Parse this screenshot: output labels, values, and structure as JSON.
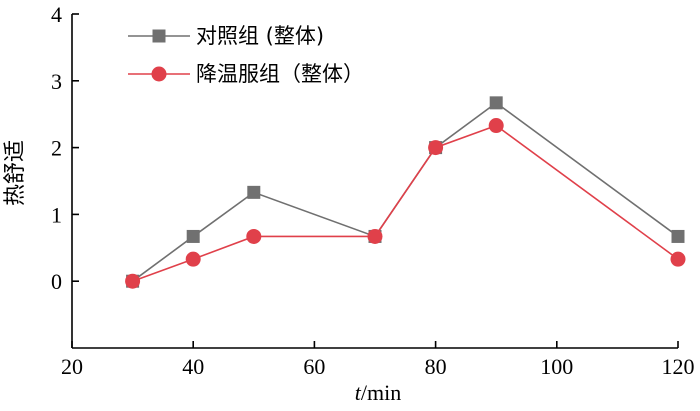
{
  "chart_data": {
    "type": "line",
    "xlabel": "t/min",
    "ylabel": "热舒适",
    "xlim": [
      20,
      120
    ],
    "ylim": [
      -1,
      4
    ],
    "xticks": [
      20,
      40,
      60,
      80,
      100,
      120
    ],
    "yticks": [
      0,
      1,
      2,
      3,
      4
    ],
    "legend_position": "top-left",
    "series": [
      {
        "name": "对照组 (整体)",
        "marker": "square",
        "color": "#707070",
        "x": [
          30,
          40,
          50,
          70,
          80,
          90,
          120
        ],
        "y": [
          0,
          0.67,
          1.33,
          0.67,
          2.0,
          2.67,
          0.67
        ]
      },
      {
        "name": "降温服组（整体）",
        "marker": "circle",
        "color": "#e0404a",
        "x": [
          30,
          40,
          50,
          70,
          80,
          90,
          120
        ],
        "y": [
          0,
          0.33,
          0.67,
          0.67,
          2.0,
          2.33,
          0.33
        ]
      }
    ]
  }
}
